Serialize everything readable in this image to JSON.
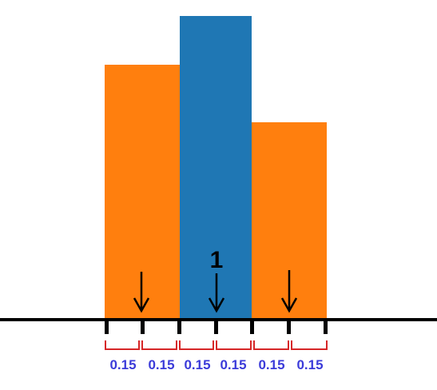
{
  "diagram": {
    "center_label": "1",
    "segment_labels": [
      "0.15",
      "0.15",
      "0.15",
      "0.15",
      "0.15",
      "0.15"
    ],
    "bars": [
      {
        "name": "left-bar",
        "color": "#ff7f0e",
        "relative_height": 0.84
      },
      {
        "name": "center-bar",
        "color": "#1f77b4",
        "relative_height": 1.0
      },
      {
        "name": "right-bar",
        "color": "#ff7f0e",
        "relative_height": 0.65
      }
    ],
    "colors": {
      "baseline": "#000000",
      "bracket": "#d62728",
      "segment_label": "#3b3bd9",
      "arrow": "#000000"
    }
  }
}
